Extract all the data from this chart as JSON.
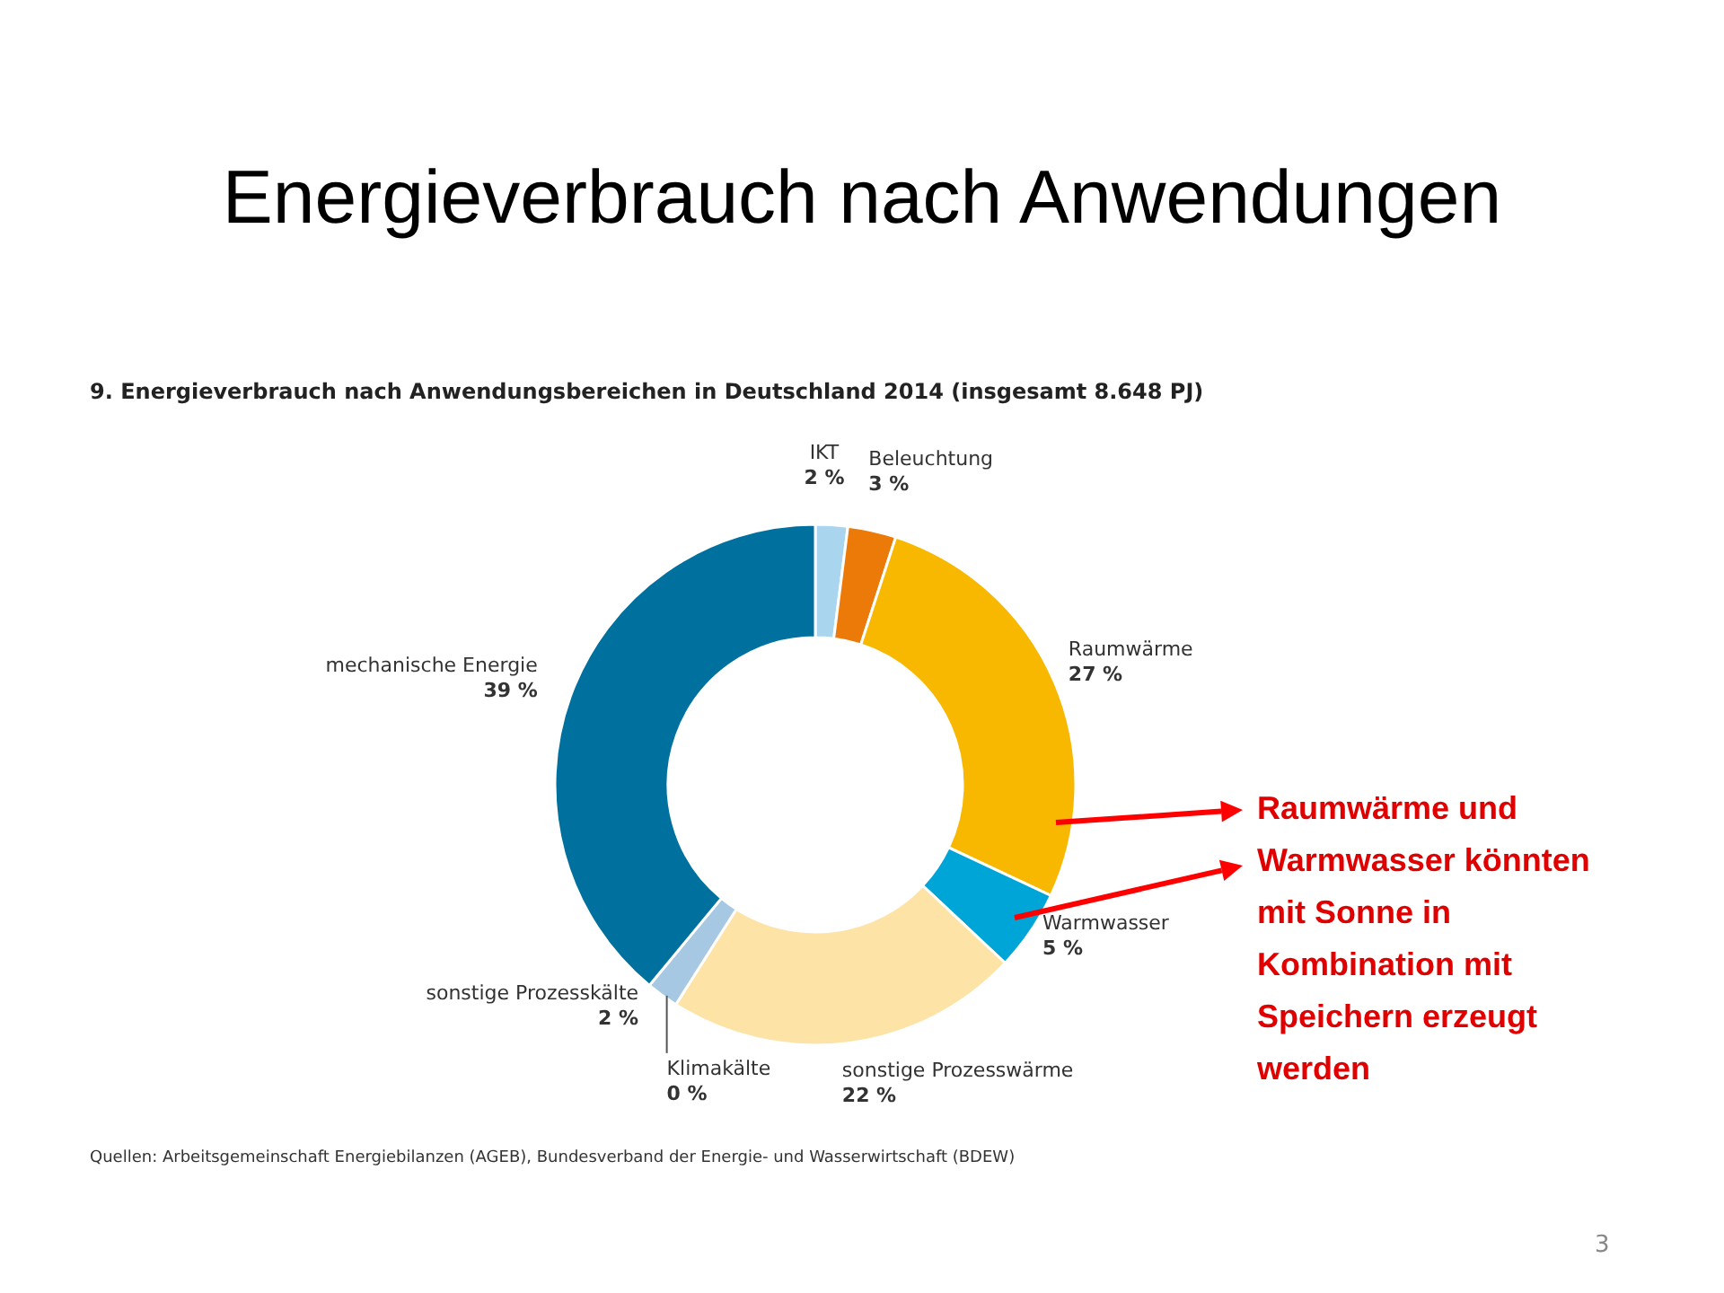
{
  "chart_data": {
    "type": "donut",
    "title": "Energieverbrauch nach Anwendungen",
    "subtitle": "9. Energieverbrauch nach Anwendungsbereichen in Deutschland 2014 (insgesamt 8.648 PJ)",
    "categories": [
      "IKT",
      "Beleuchtung",
      "Raumwärme",
      "Warmwasser",
      "sonstige Prozesswärme",
      "Klimakälte",
      "sonstige Prozesskälte",
      "mechanische Energie"
    ],
    "values": [
      2,
      3,
      27,
      5,
      22,
      0,
      2,
      39
    ],
    "value_labels": [
      "2 %",
      "3 %",
      "27 %",
      "5 %",
      "22 %",
      "0 %",
      "2 %",
      "39 %"
    ],
    "colors": [
      "#a9d5ee",
      "#ec7a08",
      "#f8b800",
      "#00a5d8",
      "#fde3a6",
      "#3a4a5a",
      "#a6c8e2",
      "#00719e"
    ],
    "annotations": [
      "Quellen: Arbeitsgemeinschaft Energiebilanzen (AGEB), Bundesverband der Energie- und Wasserwirtschaft (BDEW)",
      "Raumwärme und Warmwasser könnten mit Sonne in Kombination mit Speichern erzeugt werden",
      "3"
    ]
  }
}
